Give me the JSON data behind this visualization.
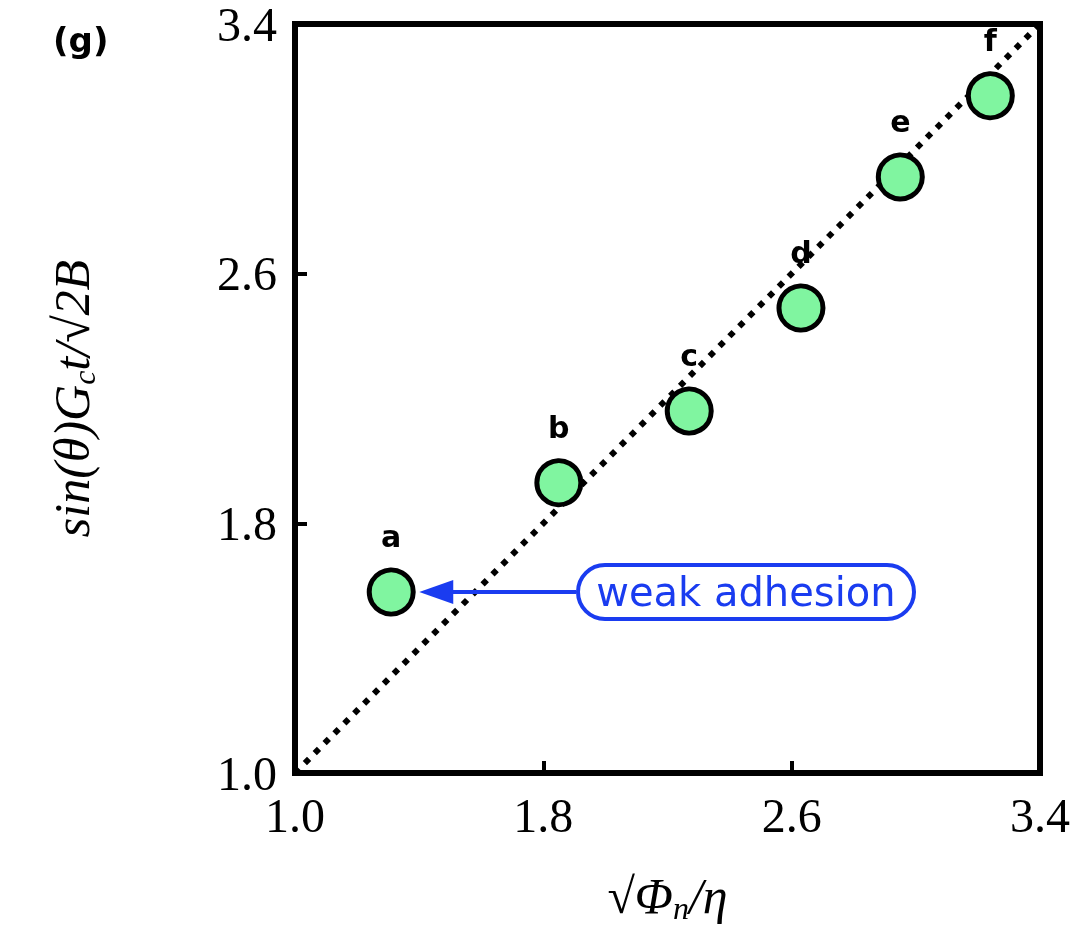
{
  "chart_data": {
    "type": "scatter",
    "title": "(g)",
    "xlabel": "√Φ$_{n}$/η",
    "ylabel": "sin(θ)G$_{c}$t/√2B",
    "xlim": [
      1.0,
      3.4
    ],
    "xticks": [
      {
        "value": 1.0,
        "label": "1.0"
      },
      1.8,
      2.6,
      3.4
    ],
    "ylim": [
      1.0,
      3.4
    ],
    "yticks": [
      {
        "value": 1.0,
        "label": "1.0"
      },
      1.8,
      2.6,
      3.4
    ],
    "grid": false,
    "series": [
      {
        "color": "#80f5a0",
        "marker": "circle",
        "x": [
          1.31,
          1.85,
          2.27,
          2.63,
          2.95,
          3.24
        ],
        "values": [
          1.58,
          1.93,
          2.16,
          2.49,
          2.91,
          3.17
        ],
        "value_labels": [
          "a",
          "b",
          "c",
          "d",
          "e",
          "f"
        ]
      },
      {
        "type": "line",
        "color": "#000000",
        "x": [
          1.0,
          3.4
        ],
        "values": [
          1.0,
          3.4
        ],
        "line_style": "dotted",
        "marker": "none"
      }
    ],
    "annotations": [
      "weak adhesion"
    ]
  }
}
